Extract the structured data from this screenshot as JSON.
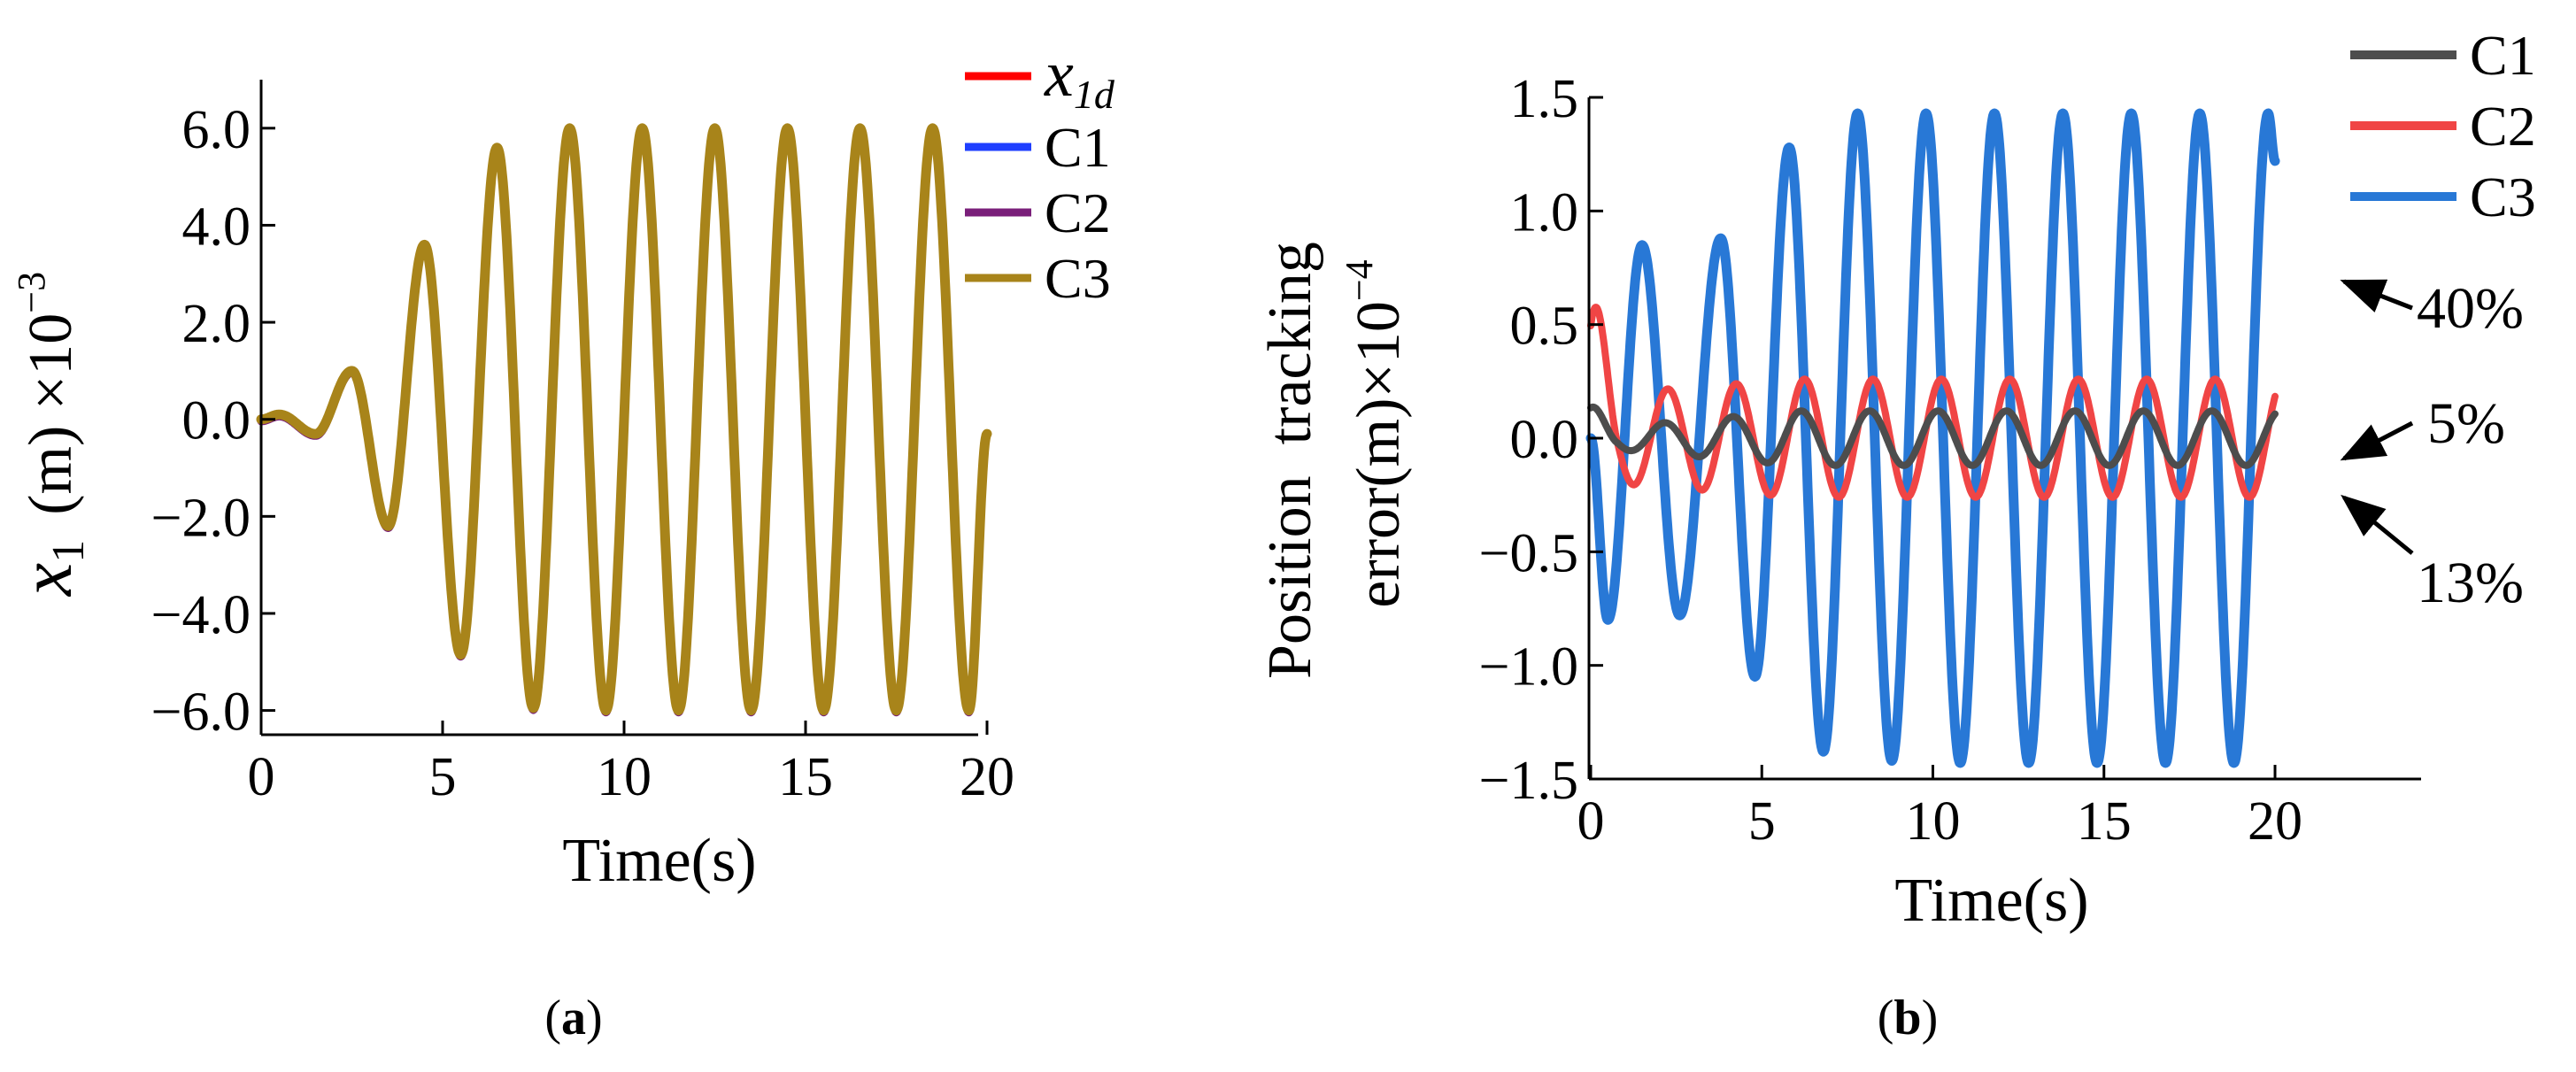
{
  "chart_data": [
    {
      "type": "line",
      "panel_label": "a",
      "xlabel": "Time(s)",
      "ylabel": "x",
      "ylabel_sub": "1",
      "ylabel_unit": "(m) ×10",
      "ylabel_exp": "−3",
      "xlim": [
        0,
        20
      ],
      "ylim": [
        -6.5,
        7.0
      ],
      "xticks": [
        0,
        5,
        10,
        15,
        20
      ],
      "xtick_labels": [
        "0",
        "5",
        "10",
        "15",
        "20"
      ],
      "yticks": [
        6,
        4,
        2,
        0,
        -2,
        -4,
        -6
      ],
      "ytick_labels": [
        "6.0",
        "4.0",
        "2.0",
        "0.0",
        "−2.0",
        "−4.0",
        "−6.0"
      ],
      "grid": false,
      "legend_position": "top-right",
      "series": [
        {
          "name": "x",
          "name_sub": "1d",
          "color": "#ff0000"
        },
        {
          "name": "C1",
          "color": "#1f3fff"
        },
        {
          "name": "C2",
          "color": "#7a1f7a"
        },
        {
          "name": "C3",
          "color": "#a8841a"
        }
      ],
      "signal": {
        "period_s": 2,
        "peak_times_s": [
          0.5,
          1.5,
          2.5,
          3.5,
          4.5,
          5.5,
          6.5,
          7.5,
          8.5,
          9.5,
          10.5,
          11.5,
          12.5,
          13.5,
          14.5,
          15.5,
          16.5,
          17.5,
          18.5,
          19.5
        ],
        "peak_values": [
          0.1,
          -0.3,
          1.0,
          -2.2,
          3.6,
          -4.85,
          5.6,
          -5.95,
          6.0,
          -6.0,
          6.0,
          -6.0,
          6.0,
          -6.0,
          6.0,
          -6.0,
          6.0,
          -6.0,
          6.0,
          -6.0
        ],
        "end_value": -0.3
      }
    },
    {
      "type": "line",
      "panel_label": "b",
      "xlabel": "Time(s)",
      "ylabel_line1": "Position  tracking",
      "ylabel_line2": "error(m)×10",
      "ylabel_exp": "−4",
      "xlim": [
        0,
        20
      ],
      "ylim": [
        -1.5,
        1.5
      ],
      "xticks": [
        0,
        5,
        10,
        15,
        20
      ],
      "xtick_labels": [
        "0",
        "5",
        "10",
        "15",
        "20"
      ],
      "yticks": [
        1.5,
        1.0,
        0.5,
        0.0,
        -0.5,
        -1.0,
        -1.5
      ],
      "ytick_labels": [
        "1.5",
        "1.0",
        "0.5",
        "0.0",
        "−0.5",
        "−1.0",
        "−1.5"
      ],
      "grid": false,
      "legend_position": "top-right",
      "series": [
        {
          "name": "C1",
          "color": "#4d4d4d",
          "amplitude": [
            0.15,
            0.05,
            0.12
          ],
          "end_value": -0.05
        },
        {
          "name": "C2",
          "color": "#f04545",
          "amplitude": [
            0.7,
            0.2,
            0.26
          ],
          "end_value": -0.2
        },
        {
          "name": "C3",
          "color": "#2878d6",
          "peak_times_s": [
            0.5,
            1.5,
            2.6,
            3.8,
            4.8,
            5.8,
            6.8,
            7.8,
            8.8,
            9.8,
            10.8,
            11.8,
            12.8,
            13.8,
            14.8,
            15.8,
            16.8,
            17.8,
            18.8,
            19.8
          ],
          "peak_values": [
            -0.8,
            0.85,
            -0.78,
            0.88,
            -1.05,
            1.28,
            -1.38,
            1.43,
            -1.42,
            1.43,
            -1.43,
            1.43,
            -1.43,
            1.43,
            -1.43,
            1.43,
            -1.43,
            1.43,
            -1.43,
            1.43
          ],
          "end_value": 1.22
        }
      ],
      "annotations": [
        {
          "text": "40%",
          "target_series": "C3"
        },
        {
          "text": "5%",
          "target_series": "C1"
        },
        {
          "text": "13%",
          "target_series": "C2"
        }
      ]
    }
  ],
  "captions": {
    "a": {
      "open": "(",
      "label": "a",
      "close": ")"
    },
    "b": {
      "open": "(",
      "label": "b",
      "close": ")"
    }
  }
}
